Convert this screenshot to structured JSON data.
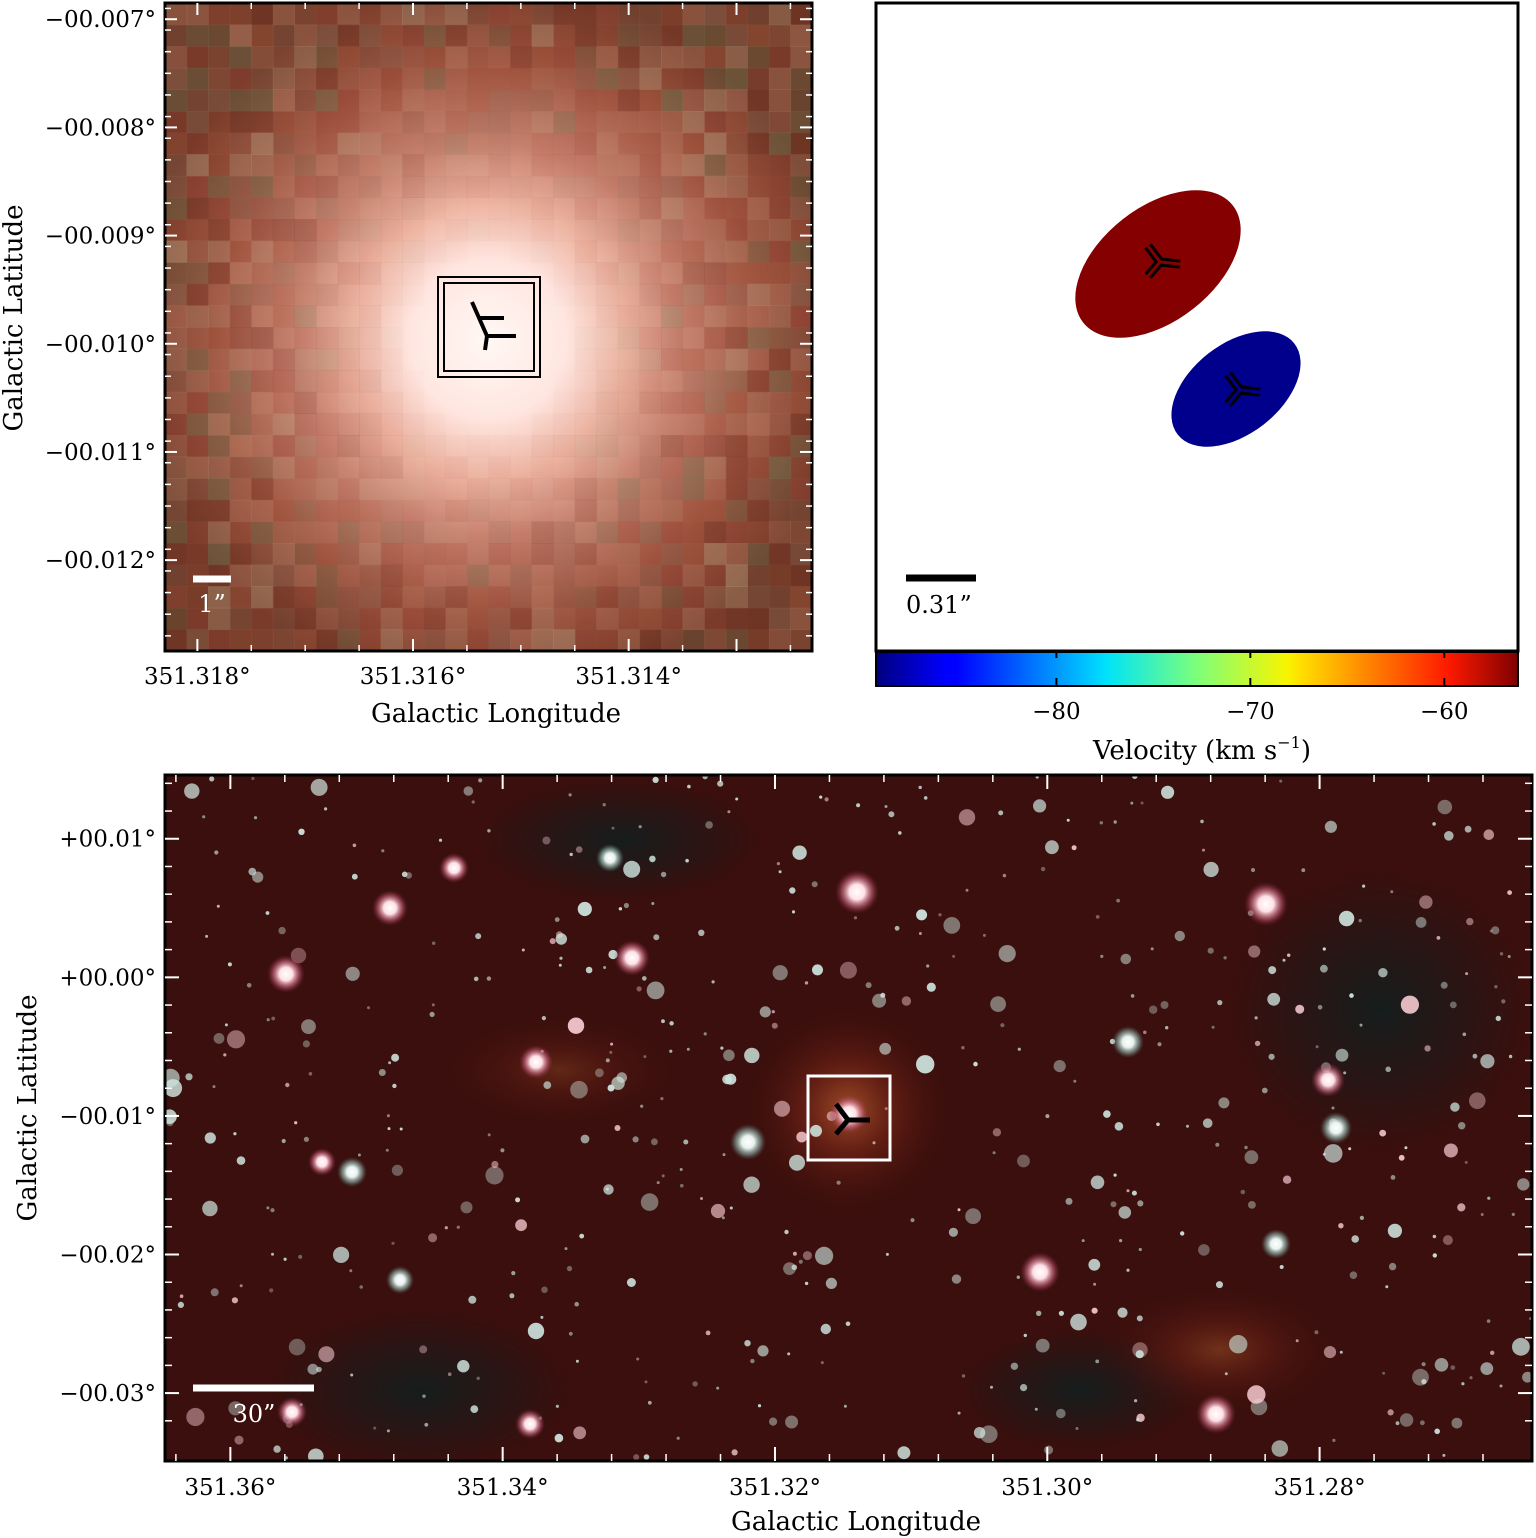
{
  "panels": {
    "top_left": {
      "title": "",
      "xlabel": "Galactic Longitude",
      "ylabel": "Galactic Latitude",
      "x_ticks": [
        "351.318°",
        "351.316°",
        "351.314°"
      ],
      "x_tick_values": [
        351.318,
        351.316,
        351.314
      ],
      "xlim": [
        351.3183,
        351.3123
      ],
      "y_ticks": [
        "−00.007°",
        "−00.008°",
        "−00.009°",
        "−00.010°",
        "−00.011°",
        "−00.012°"
      ],
      "y_tick_values": [
        -0.007,
        -0.008,
        -0.009,
        -0.01,
        -0.011,
        -0.012
      ],
      "ylim": [
        -0.01284,
        -0.00685
      ],
      "scale_bar_label": "1”",
      "colors": {
        "scale_bar": "#ffffff",
        "box": "#000000",
        "marker": "#000000"
      }
    },
    "top_right": {
      "scale_bar_label": "0.31”",
      "colorbar_label": "Velocity (km s",
      "colorbar_label_sup": "−1",
      "colorbar_label_end": ")",
      "colorbar_ticks": [
        "−80",
        "−70",
        "−60"
      ],
      "colorbar_tick_values": [
        -80,
        -70,
        -60
      ],
      "colorbar_range": [
        -89.3,
        -56.2
      ],
      "colors": {
        "red_component": "#850000",
        "blue_component": "#00008c",
        "marker": "#000000"
      }
    },
    "bottom": {
      "xlabel": "Galactic Longitude",
      "ylabel": "Galactic Latitude",
      "x_ticks": [
        "351.36°",
        "351.34°",
        "351.32°",
        "351.30°",
        "351.28°"
      ],
      "x_tick_values": [
        351.36,
        351.34,
        351.32,
        351.3,
        351.28
      ],
      "xlim": [
        351.3648,
        351.2644
      ],
      "y_ticks": [
        "+00.01°",
        "+00.00°",
        "−00.01°",
        "−00.02°",
        "−00.03°"
      ],
      "y_tick_values": [
        0.01,
        0.0,
        -0.01,
        -0.02,
        -0.03
      ],
      "ylim": [
        -0.0349,
        0.0146
      ],
      "scale_bar_label": "30”",
      "colors": {
        "scale_bar": "#ffffff",
        "box": "#ffffff",
        "marker": "#000000"
      }
    }
  },
  "chart_data": [
    {
      "type": "image",
      "panel": "top_left",
      "xlabel": "Galactic Longitude",
      "ylabel": "Galactic Latitude",
      "xlim": [
        351.3183,
        351.3123
      ],
      "ylim": [
        -0.01284,
        -0.00685
      ]
    },
    {
      "type": "scatter",
      "panel": "top_right",
      "series": [
        {
          "name": "",
          "velocity": -57.5,
          "color": "#850000"
        },
        {
          "name": "",
          "velocity": -89.0,
          "color": "#00008c"
        }
      ],
      "colorbar": {
        "label": "Velocity (km s−1)",
        "ticks": [
          -80,
          -70,
          -60
        ],
        "range": [
          -89.3,
          -56.2
        ],
        "colormap": "jet"
      }
    },
    {
      "type": "image",
      "panel": "bottom",
      "xlabel": "Galactic Longitude",
      "ylabel": "Galactic Latitude",
      "xlim": [
        351.3648,
        351.2644
      ],
      "ylim": [
        -0.0349,
        0.0146
      ]
    }
  ]
}
